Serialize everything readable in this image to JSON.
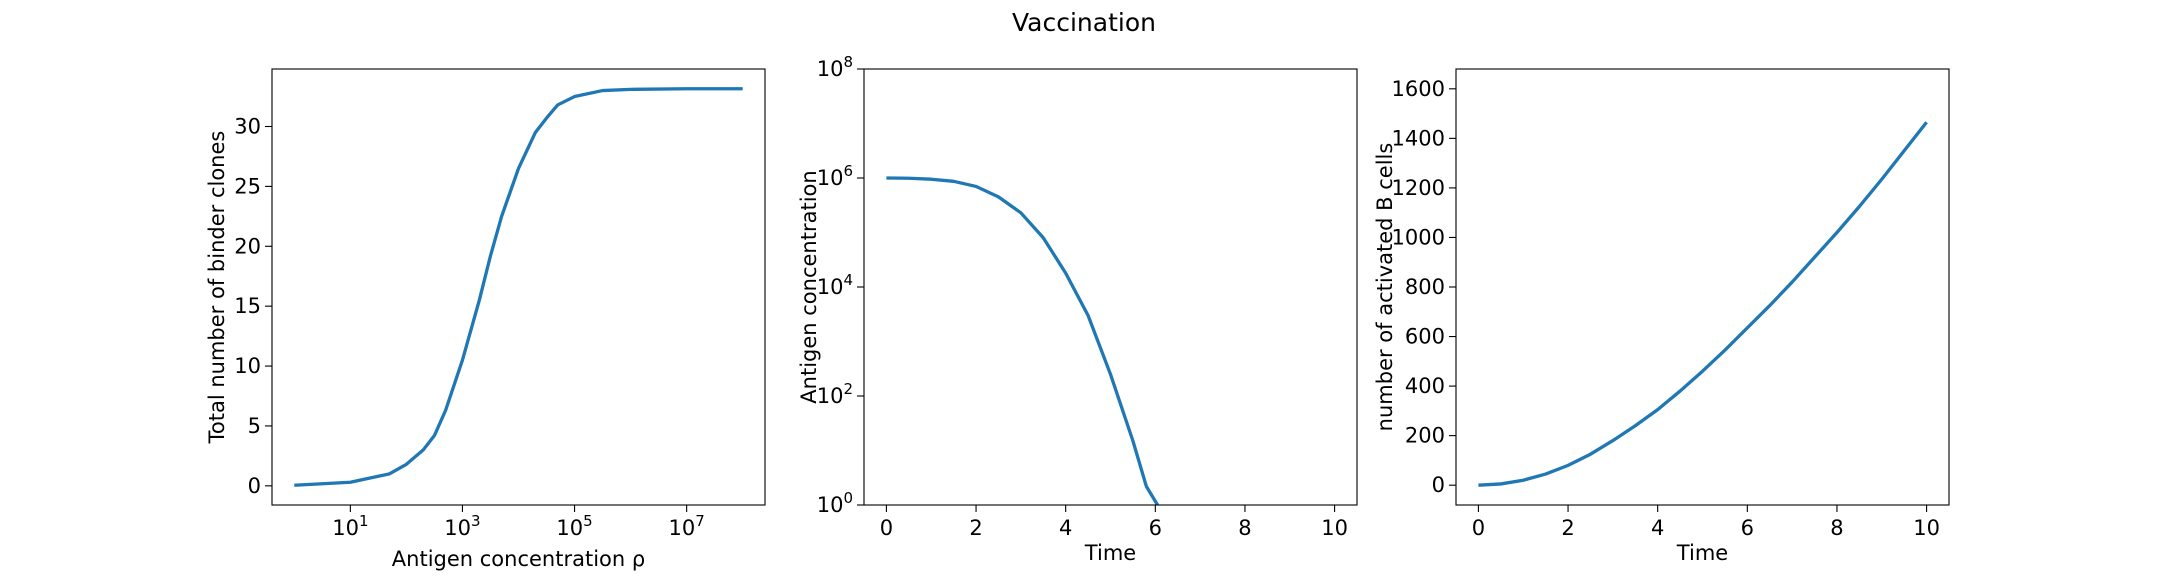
{
  "figure": {
    "title": "Vaccination"
  },
  "colors": {
    "series": "#1f77b4",
    "axis": "#000000"
  },
  "chart_data": [
    {
      "type": "line",
      "xlabel": "Antigen concentration ρ",
      "ylabel": "Total number of binder clones",
      "xscale": "log",
      "xlim": [
        0.4,
        250000000.0
      ],
      "ylim": [
        -1.6,
        34.8
      ],
      "xticks": [
        {
          "v": 10.0,
          "m": "10",
          "e": "1"
        },
        {
          "v": 1000.0,
          "m": "10",
          "e": "3"
        },
        {
          "v": 100000.0,
          "m": "10",
          "e": "5"
        },
        {
          "v": 10000000.0,
          "m": "10",
          "e": "7"
        }
      ],
      "yticks": [
        {
          "v": 0,
          "t": "0"
        },
        {
          "v": 5,
          "t": "5"
        },
        {
          "v": 10,
          "t": "10"
        },
        {
          "v": 15,
          "t": "15"
        },
        {
          "v": 20,
          "t": "20"
        },
        {
          "v": 25,
          "t": "25"
        },
        {
          "v": 30,
          "t": "30"
        }
      ],
      "grid": false,
      "series": [
        {
          "x": [
            1,
            10,
            50,
            100,
            200,
            316,
            500,
            1000,
            2000,
            3160,
            5000,
            10000,
            20000,
            31600,
            50000,
            100000,
            316000,
            1000000,
            10000000,
            100000000
          ],
          "y": [
            0.05,
            0.3,
            1.0,
            1.8,
            3.0,
            4.2,
            6.3,
            10.5,
            15.5,
            19.2,
            22.5,
            26.5,
            29.5,
            30.7,
            31.8,
            32.5,
            33.0,
            33.1,
            33.15,
            33.15
          ]
        }
      ]
    },
    {
      "type": "line",
      "xlabel": "Time",
      "ylabel": "Antigen concentration",
      "yscale": "log",
      "xlim": [
        -0.5,
        10.5
      ],
      "ylim": [
        1,
        100000000.0
      ],
      "xticks": [
        {
          "v": 0,
          "t": "0"
        },
        {
          "v": 2,
          "t": "2"
        },
        {
          "v": 4,
          "t": "4"
        },
        {
          "v": 6,
          "t": "6"
        },
        {
          "v": 8,
          "t": "8"
        },
        {
          "v": 10,
          "t": "10"
        }
      ],
      "yticks": [
        {
          "v": 1,
          "m": "10",
          "e": "0"
        },
        {
          "v": 100,
          "m": "10",
          "e": "2"
        },
        {
          "v": 10000,
          "m": "10",
          "e": "4"
        },
        {
          "v": 1000000,
          "m": "10",
          "e": "6"
        },
        {
          "v": 100000000,
          "m": "10",
          "e": "8"
        }
      ],
      "grid": false,
      "series": [
        {
          "x": [
            0,
            0.5,
            1,
            1.5,
            2,
            2.5,
            3,
            3.5,
            4,
            4.5,
            5,
            5.5,
            5.8,
            6.05
          ],
          "y": [
            1000000,
            990000,
            950000,
            870000,
            700000,
            450000,
            230000,
            80000,
            18000,
            3000,
            250,
            15,
            2.2,
            1
          ]
        }
      ]
    },
    {
      "type": "line",
      "xlabel": "Time",
      "ylabel": "number of activated B cells",
      "xlim": [
        -0.5,
        10.5
      ],
      "ylim": [
        -80,
        1680
      ],
      "xticks": [
        {
          "v": 0,
          "t": "0"
        },
        {
          "v": 2,
          "t": "2"
        },
        {
          "v": 4,
          "t": "4"
        },
        {
          "v": 6,
          "t": "6"
        },
        {
          "v": 8,
          "t": "8"
        },
        {
          "v": 10,
          "t": "10"
        }
      ],
      "yticks": [
        {
          "v": 0,
          "t": "0"
        },
        {
          "v": 200,
          "t": "200"
        },
        {
          "v": 400,
          "t": "400"
        },
        {
          "v": 600,
          "t": "600"
        },
        {
          "v": 800,
          "t": "800"
        },
        {
          "v": 1000,
          "t": "1000"
        },
        {
          "v": 1200,
          "t": "1200"
        },
        {
          "v": 1400,
          "t": "1400"
        },
        {
          "v": 1600,
          "t": "1600"
        }
      ],
      "grid": false,
      "series": [
        {
          "x": [
            0,
            0.5,
            1,
            1.5,
            2,
            2.5,
            3,
            3.5,
            4,
            4.5,
            5,
            5.5,
            6,
            6.5,
            7,
            7.5,
            8,
            8.5,
            9,
            9.5,
            10
          ],
          "y": [
            0,
            5,
            20,
            45,
            80,
            125,
            180,
            240,
            305,
            380,
            460,
            545,
            635,
            725,
            820,
            920,
            1020,
            1125,
            1235,
            1350,
            1465
          ]
        }
      ]
    }
  ]
}
